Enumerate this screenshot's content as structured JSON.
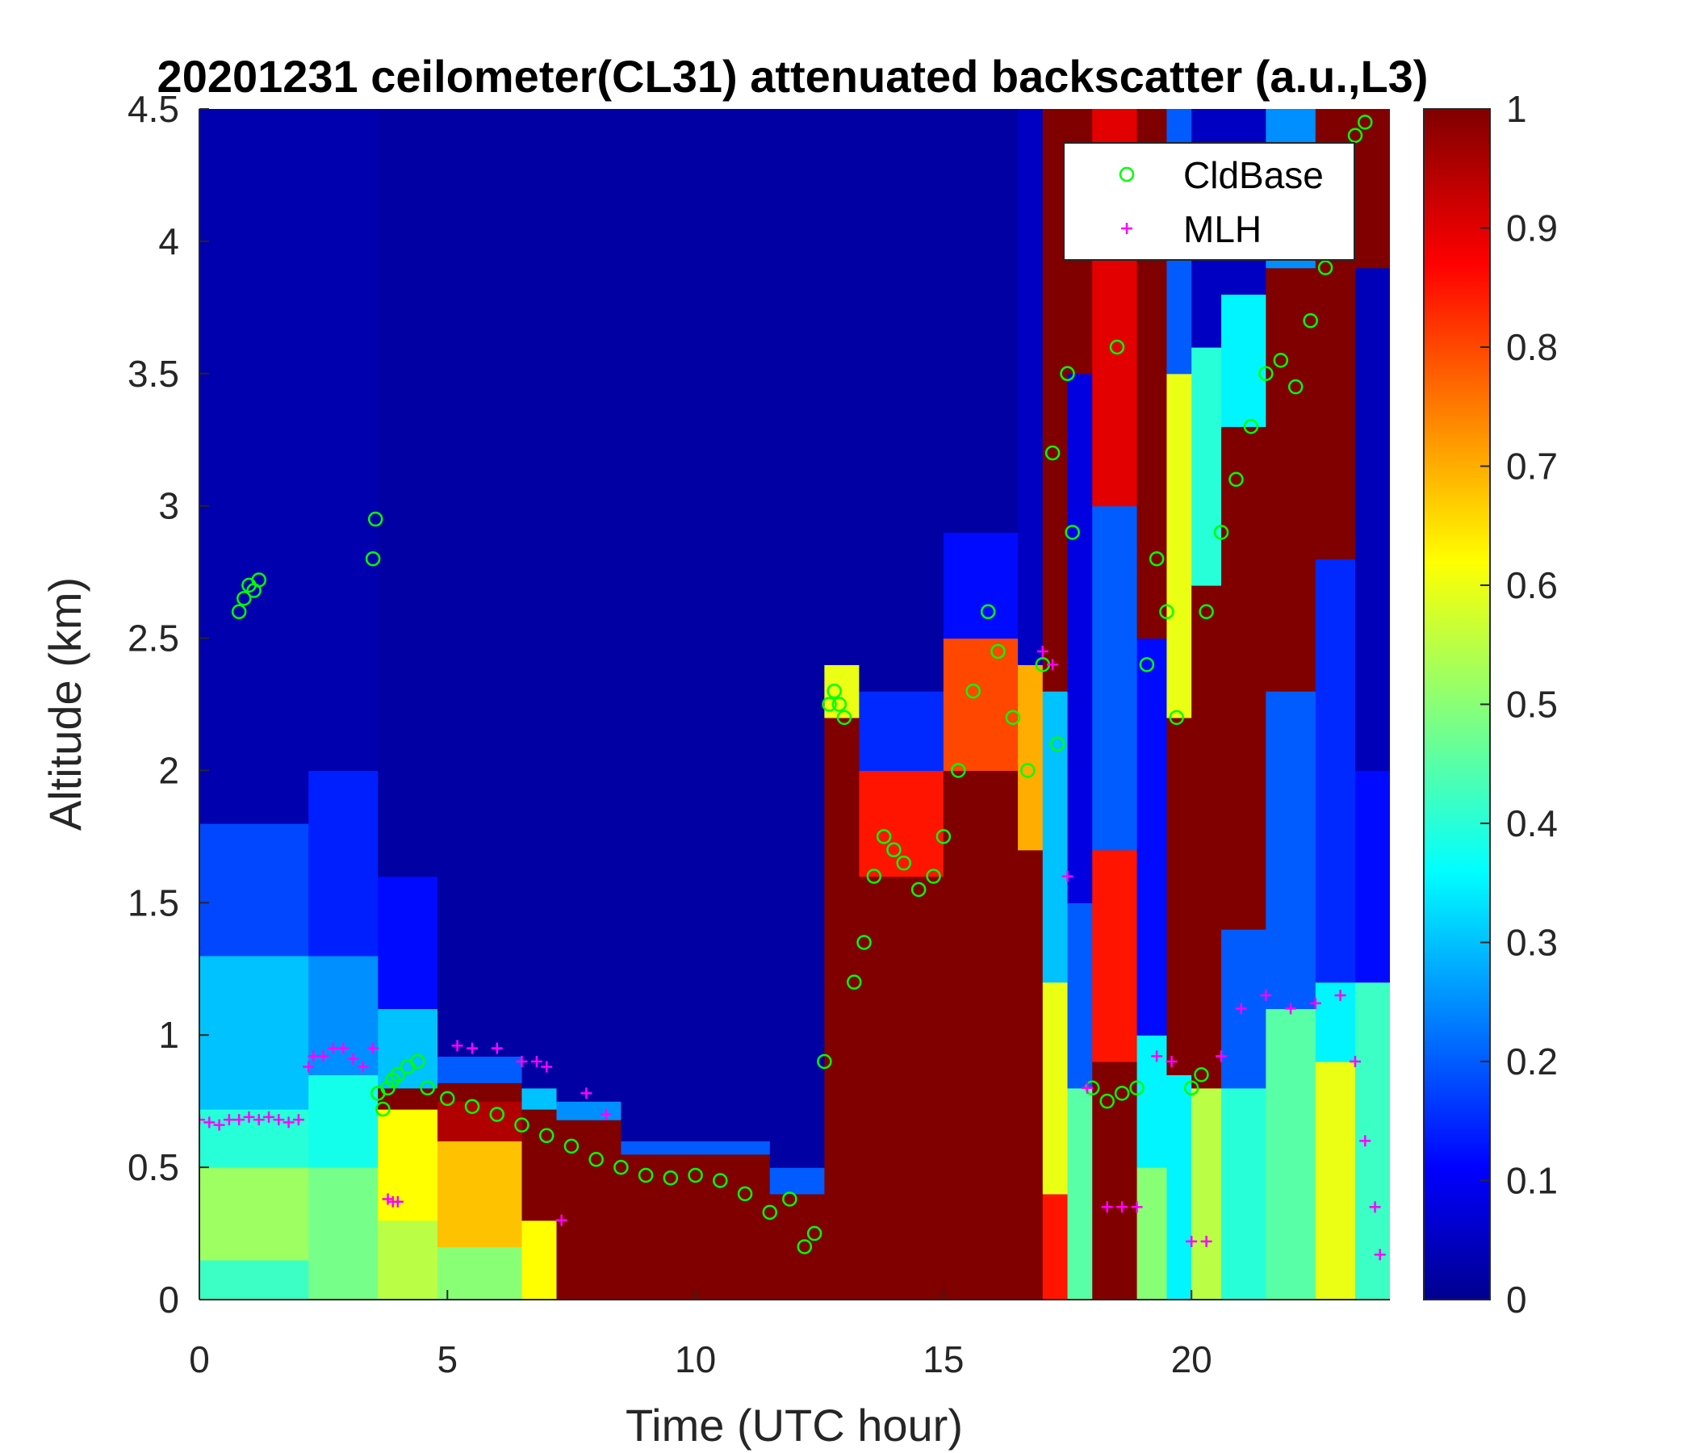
{
  "chart_data": {
    "type": "heatmap",
    "title": "20201231 ceilometer(CL31) attenuated backscatter (a.u.,L3)",
    "xlabel": "Time (UTC hour)",
    "ylabel": "Altitude (km)",
    "xlim": [
      0,
      24
    ],
    "ylim": [
      0,
      4.5
    ],
    "xticks": [
      0,
      5,
      10,
      15,
      20
    ],
    "xtick_labels": [
      "0",
      "5",
      "10",
      "15",
      "20"
    ],
    "yticks": [
      0,
      0.5,
      1,
      1.5,
      2,
      2.5,
      3,
      3.5,
      4,
      4.5
    ],
    "ytick_labels": [
      "0",
      "0.5",
      "1",
      "1.5",
      "2",
      "2.5",
      "3",
      "3.5",
      "4",
      "4.5"
    ],
    "colorbar": {
      "colormap": "jet",
      "range": [
        0,
        1
      ],
      "ticks": [
        0,
        0.1,
        0.2,
        0.3,
        0.4,
        0.5,
        0.6,
        0.7,
        0.8,
        0.9,
        1
      ],
      "tick_labels": [
        "0",
        "0.1",
        "0.2",
        "0.3",
        "0.4",
        "0.5",
        "0.6",
        "0.7",
        "0.8",
        "0.9",
        "1"
      ]
    },
    "grid": false,
    "legend": {
      "placement": "top-right",
      "entries": [
        {
          "label": "CldBase",
          "marker": "circle",
          "color": "#00ff00"
        },
        {
          "label": "MLH",
          "marker": "plus",
          "color": "#ff00ff"
        }
      ]
    },
    "heatmap_columns": [
      {
        "t": [
          0,
          2.2
        ],
        "segs": [
          [
            0,
            0.15,
            0.42
          ],
          [
            0.15,
            0.5,
            0.52
          ],
          [
            0.5,
            0.72,
            0.4
          ],
          [
            0.72,
            1.3,
            0.3
          ],
          [
            1.3,
            1.8,
            0.18
          ],
          [
            1.8,
            4.5,
            0.03
          ]
        ]
      },
      {
        "t": [
          2.2,
          3.6
        ],
        "segs": [
          [
            0,
            0.5,
            0.48
          ],
          [
            0.5,
            0.85,
            0.38
          ],
          [
            0.85,
            1.3,
            0.25
          ],
          [
            1.3,
            2.0,
            0.14
          ],
          [
            2.0,
            4.5,
            0.03
          ]
        ]
      },
      {
        "t": [
          3.6,
          4.8
        ],
        "segs": [
          [
            0,
            0.3,
            0.55
          ],
          [
            0.3,
            0.72,
            0.62
          ],
          [
            0.72,
            0.8,
            1.0
          ],
          [
            0.8,
            1.1,
            0.3
          ],
          [
            1.1,
            1.6,
            0.12
          ],
          [
            1.6,
            4.5,
            0.02
          ]
        ]
      },
      {
        "t": [
          4.8,
          6.5
        ],
        "segs": [
          [
            0,
            0.2,
            0.5
          ],
          [
            0.2,
            0.6,
            0.68
          ],
          [
            0.6,
            0.75,
            0.95
          ],
          [
            0.75,
            0.82,
            1.0
          ],
          [
            0.82,
            0.92,
            0.2
          ],
          [
            0.92,
            4.5,
            0.02
          ]
        ]
      },
      {
        "t": [
          6.5,
          7.2
        ],
        "segs": [
          [
            0,
            0.3,
            0.62
          ],
          [
            0.3,
            0.72,
            1.0
          ],
          [
            0.72,
            0.8,
            0.3
          ],
          [
            0.8,
            4.5,
            0.02
          ]
        ]
      },
      {
        "t": [
          7.2,
          8.5
        ],
        "segs": [
          [
            0,
            0.68,
            1.0
          ],
          [
            0.68,
            0.75,
            0.25
          ],
          [
            0.75,
            4.5,
            0.02
          ]
        ]
      },
      {
        "t": [
          8.5,
          11.5
        ],
        "segs": [
          [
            0,
            0.55,
            1.0
          ],
          [
            0.55,
            0.6,
            0.2
          ],
          [
            0.6,
            4.5,
            0.02
          ]
        ]
      },
      {
        "t": [
          11.5,
          12.6
        ],
        "segs": [
          [
            0,
            0.4,
            1.0
          ],
          [
            0.4,
            0.5,
            0.2
          ],
          [
            0.5,
            4.5,
            0.02
          ]
        ]
      },
      {
        "t": [
          12.6,
          13.3
        ],
        "segs": [
          [
            0,
            2.2,
            1.0
          ],
          [
            2.2,
            2.4,
            0.6
          ],
          [
            2.4,
            4.5,
            0.02
          ]
        ]
      },
      {
        "t": [
          13.3,
          15.0
        ],
        "segs": [
          [
            0,
            1.6,
            1.0
          ],
          [
            1.6,
            2.0,
            0.85
          ],
          [
            2.0,
            2.3,
            0.15
          ],
          [
            2.3,
            4.5,
            0.02
          ]
        ]
      },
      {
        "t": [
          15.0,
          16.5
        ],
        "segs": [
          [
            0,
            2.0,
            1.0
          ],
          [
            2.0,
            2.5,
            0.8
          ],
          [
            2.5,
            2.9,
            0.12
          ],
          [
            2.9,
            4.5,
            0.02
          ]
        ]
      },
      {
        "t": [
          16.5,
          17.0
        ],
        "segs": [
          [
            0,
            1.7,
            1.0
          ],
          [
            1.7,
            2.4,
            0.7
          ],
          [
            2.4,
            4.5,
            0.05
          ]
        ]
      },
      {
        "t": [
          17.0,
          17.5
        ],
        "segs": [
          [
            0,
            0.4,
            0.85
          ],
          [
            0.4,
            1.2,
            0.6
          ],
          [
            1.2,
            2.3,
            0.3
          ],
          [
            2.3,
            4.5,
            1.0
          ]
        ]
      },
      {
        "t": [
          17.5,
          18.0
        ],
        "segs": [
          [
            0,
            0.8,
            0.45
          ],
          [
            0.8,
            1.5,
            0.2
          ],
          [
            1.5,
            3.5,
            0.08
          ],
          [
            3.5,
            4.5,
            1.0
          ]
        ]
      },
      {
        "t": [
          18.0,
          18.9
        ],
        "segs": [
          [
            0,
            0.9,
            1.0
          ],
          [
            0.9,
            1.7,
            0.85
          ],
          [
            1.7,
            3.0,
            0.2
          ],
          [
            3.0,
            4.5,
            0.9
          ]
        ]
      },
      {
        "t": [
          18.9,
          19.5
        ],
        "segs": [
          [
            0,
            0.5,
            0.5
          ],
          [
            0.5,
            1.0,
            0.35
          ],
          [
            1.0,
            2.5,
            0.12
          ],
          [
            2.5,
            4.5,
            1.0
          ]
        ]
      },
      {
        "t": [
          19.5,
          20.0
        ],
        "segs": [
          [
            0,
            0.85,
            0.35
          ],
          [
            0.85,
            2.2,
            1.0
          ],
          [
            2.2,
            3.5,
            0.6
          ],
          [
            3.5,
            4.5,
            0.2
          ]
        ]
      },
      {
        "t": [
          20.0,
          20.6
        ],
        "segs": [
          [
            0,
            0.8,
            0.55
          ],
          [
            0.8,
            2.7,
            1.0
          ],
          [
            2.7,
            3.6,
            0.4
          ],
          [
            3.6,
            4.5,
            0.05
          ]
        ]
      },
      {
        "t": [
          20.6,
          21.5
        ],
        "segs": [
          [
            0,
            0.8,
            0.4
          ],
          [
            0.8,
            1.4,
            0.2
          ],
          [
            1.4,
            3.3,
            1.0
          ],
          [
            3.3,
            3.8,
            0.35
          ],
          [
            3.8,
            4.5,
            0.05
          ]
        ]
      },
      {
        "t": [
          21.5,
          22.5
        ],
        "segs": [
          [
            0,
            1.1,
            0.45
          ],
          [
            1.1,
            2.3,
            0.2
          ],
          [
            2.3,
            3.9,
            1.0
          ],
          [
            3.9,
            4.5,
            0.25
          ]
        ]
      },
      {
        "t": [
          22.5,
          23.3
        ],
        "segs": [
          [
            0,
            0.9,
            0.6
          ],
          [
            0.9,
            1.2,
            0.35
          ],
          [
            1.2,
            2.8,
            0.15
          ],
          [
            2.8,
            4.5,
            1.0
          ]
        ]
      },
      {
        "t": [
          23.3,
          24.0
        ],
        "segs": [
          [
            0,
            1.2,
            0.42
          ],
          [
            1.2,
            2.0,
            0.12
          ],
          [
            2.0,
            3.9,
            0.04
          ],
          [
            3.9,
            4.5,
            1.0
          ]
        ]
      }
    ],
    "series": [
      {
        "name": "CldBase",
        "marker": "circle",
        "color": "#00ff00",
        "x": [
          0.8,
          0.9,
          1.0,
          1.1,
          1.2,
          3.5,
          3.55,
          3.6,
          3.7,
          3.8,
          3.9,
          4.0,
          4.2,
          4.4,
          4.6,
          5.0,
          5.5,
          6.0,
          6.5,
          7.0,
          7.5,
          8.0,
          8.5,
          9.0,
          9.5,
          10.0,
          10.5,
          11.0,
          11.5,
          11.9,
          12.2,
          12.4,
          12.6,
          12.7,
          12.8,
          12.9,
          13.0,
          13.2,
          13.4,
          13.6,
          13.8,
          14.0,
          14.2,
          14.5,
          14.8,
          15.0,
          15.3,
          15.6,
          15.9,
          16.1,
          16.4,
          16.7,
          17.0,
          17.2,
          17.5,
          17.8,
          18.0,
          18.3,
          18.6,
          18.9,
          19.1,
          19.3,
          19.5,
          19.7,
          20.0,
          20.3,
          20.6,
          20.9,
          21.2,
          21.5,
          21.8,
          22.1,
          22.4,
          22.7,
          23.0,
          23.3,
          23.5,
          17.3,
          17.6,
          18.5,
          20.2
        ],
        "y": [
          2.6,
          2.65,
          2.7,
          2.68,
          2.72,
          2.8,
          2.95,
          0.78,
          0.72,
          0.8,
          0.83,
          0.85,
          0.88,
          0.9,
          0.8,
          0.76,
          0.73,
          0.7,
          0.66,
          0.62,
          0.58,
          0.53,
          0.5,
          0.47,
          0.46,
          0.47,
          0.45,
          0.4,
          0.33,
          0.38,
          0.2,
          0.25,
          0.9,
          2.25,
          2.3,
          2.25,
          2.2,
          1.2,
          1.35,
          1.6,
          1.75,
          1.7,
          1.65,
          1.55,
          1.6,
          1.75,
          2.0,
          2.3,
          2.6,
          2.45,
          2.2,
          2.0,
          2.4,
          3.2,
          3.5,
          4.2,
          0.8,
          0.75,
          0.78,
          0.8,
          2.4,
          2.8,
          2.6,
          2.2,
          0.8,
          2.6,
          2.9,
          3.1,
          3.3,
          3.5,
          3.55,
          3.45,
          3.7,
          3.9,
          4.05,
          4.4,
          4.45,
          2.1,
          2.9,
          3.6,
          0.85
        ]
      },
      {
        "name": "MLH",
        "marker": "plus",
        "color": "#ff00ff",
        "x": [
          0,
          0.2,
          0.4,
          0.6,
          0.8,
          1.0,
          1.2,
          1.4,
          1.6,
          1.8,
          2.0,
          2.2,
          2.3,
          2.5,
          2.7,
          2.9,
          3.1,
          3.3,
          3.5,
          3.8,
          3.9,
          4.0,
          5.2,
          5.5,
          6.0,
          6.5,
          6.8,
          7.0,
          7.3,
          7.8,
          8.2,
          17.0,
          17.2,
          17.5,
          17.9,
          18.3,
          18.6,
          18.9,
          19.3,
          19.6,
          20.0,
          20.3,
          20.6,
          21.0,
          21.5,
          22.0,
          22.5,
          23.0,
          23.3,
          23.5,
          23.7,
          23.8
        ],
        "y": [
          0.68,
          0.67,
          0.66,
          0.68,
          0.68,
          0.69,
          0.68,
          0.69,
          0.68,
          0.67,
          0.68,
          0.88,
          0.92,
          0.92,
          0.95,
          0.95,
          0.91,
          0.88,
          0.95,
          0.38,
          0.37,
          0.37,
          0.96,
          0.95,
          0.95,
          0.9,
          0.9,
          0.88,
          0.3,
          0.78,
          0.7,
          2.45,
          2.4,
          1.6,
          0.8,
          0.35,
          0.35,
          0.35,
          0.92,
          0.9,
          0.22,
          0.22,
          0.92,
          1.1,
          1.15,
          1.1,
          1.12,
          1.15,
          0.9,
          0.6,
          0.35,
          0.17
        ]
      }
    ]
  }
}
